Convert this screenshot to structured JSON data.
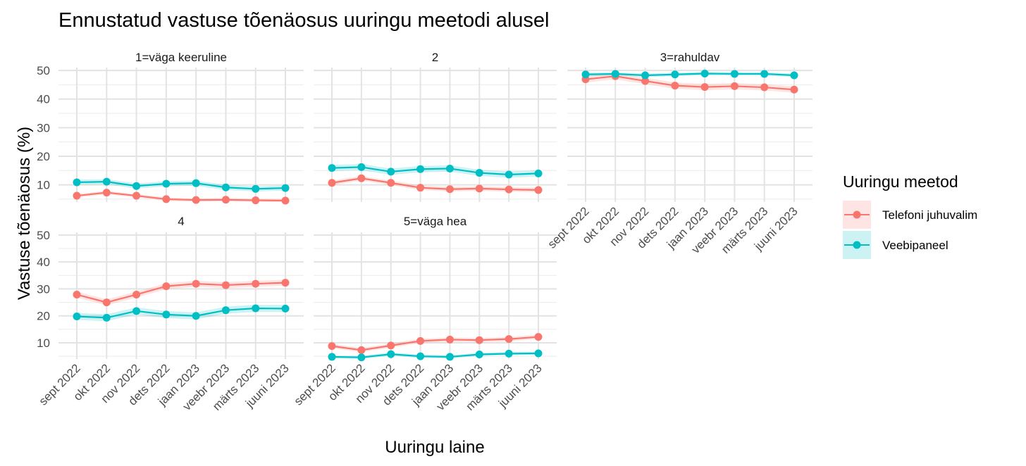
{
  "chart_data": {
    "type": "line",
    "title": "Ennustatud vastuse tõenäosus uuringu meetodi alusel",
    "xlabel": "Uuringu laine",
    "ylabel": "Vastuse tõenäosus (%)",
    "categories": [
      "sept  2022",
      "okt  2022",
      "nov  2022",
      "dets  2022",
      "jaan  2023",
      "veebr 2023",
      "märts 2023",
      "juuni 2023"
    ],
    "yticks": [
      10,
      20,
      30,
      40,
      50
    ],
    "ylim": [
      4,
      51
    ],
    "legend": {
      "title": "Uuringu meetod",
      "position": "right",
      "items": [
        {
          "name": "Telefoni juhuvalim",
          "color": "#F8766D"
        },
        {
          "name": "Veebipaneel",
          "color": "#00BFC4"
        }
      ]
    },
    "facets": [
      {
        "label": "1=väga keeruline",
        "series": [
          {
            "name": "Telefoni juhuvalim",
            "values": [
              6.2,
              7.3,
              6.2,
              5.0,
              4.7,
              4.8,
              4.6,
              4.5
            ],
            "ci": 0.6
          },
          {
            "name": "Veebipaneel",
            "values": [
              10.9,
              11.1,
              9.6,
              10.4,
              10.6,
              9.1,
              8.6,
              8.9
            ],
            "ci": 0.9
          }
        ]
      },
      {
        "label": "2",
        "series": [
          {
            "name": "Telefoni juhuvalim",
            "values": [
              10.7,
              12.3,
              10.7,
              9.0,
              8.5,
              8.7,
              8.4,
              8.2
            ],
            "ci": 0.8
          },
          {
            "name": "Veebipaneel",
            "values": [
              15.9,
              16.2,
              14.6,
              15.5,
              15.7,
              14.2,
              13.6,
              14.0
            ],
            "ci": 1.1
          }
        ]
      },
      {
        "label": "3=rahuldav",
        "series": [
          {
            "name": "Telefoni juhuvalim",
            "values": [
              46.9,
              48.0,
              46.3,
              44.7,
              44.2,
              44.5,
              44.1,
              43.3
            ],
            "ci": 1.1
          },
          {
            "name": "Veebipaneel",
            "values": [
              48.6,
              48.8,
              48.3,
              48.6,
              48.9,
              48.8,
              48.8,
              48.3
            ],
            "ci": 0.6
          }
        ]
      },
      {
        "label": "4",
        "series": [
          {
            "name": "Telefoni juhuvalim",
            "values": [
              27.9,
              25.0,
              27.9,
              31.0,
              31.9,
              31.4,
              31.9,
              32.3
            ],
            "ci": 1.1
          },
          {
            "name": "Veebipaneel",
            "values": [
              19.8,
              19.3,
              21.8,
              20.5,
              20.0,
              22.1,
              22.8,
              22.7
            ],
            "ci": 1.3
          }
        ]
      },
      {
        "label": "5=väga hea",
        "series": [
          {
            "name": "Telefoni juhuvalim",
            "values": [
              8.8,
              7.3,
              9.0,
              10.7,
              11.2,
              11.0,
              11.4,
              12.2
            ],
            "ci": 0.8
          },
          {
            "name": "Veebipaneel",
            "values": [
              4.8,
              4.6,
              5.8,
              5.0,
              4.8,
              5.7,
              6.0,
              6.1
            ],
            "ci": 0.6
          }
        ]
      }
    ]
  }
}
